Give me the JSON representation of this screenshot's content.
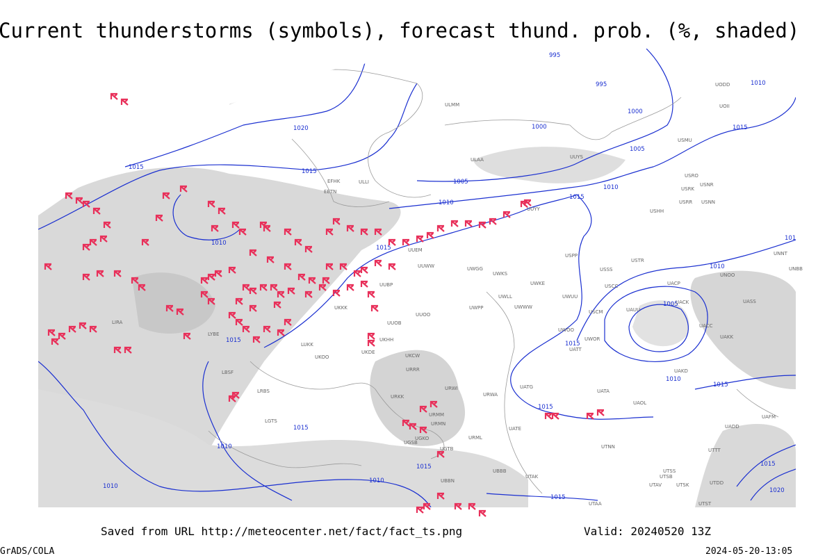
{
  "title": "Current thunderstorms (symbols), forecast thund. prob. (%, shaded)",
  "isobar_labels": [
    "995",
    "995",
    "1000",
    "1000",
    "1005",
    "1005",
    "1010",
    "1010",
    "1015",
    "1015",
    "1010",
    "1020",
    "1015",
    "1015",
    "1010",
    "1015",
    "1010",
    "1005",
    "1015",
    "1015",
    "1010",
    "1015",
    "1015",
    "1015",
    "1010",
    "1015",
    "1010",
    "1010",
    "1015",
    "1015",
    "1020",
    "101"
  ],
  "station_labels": [
    "UUEM",
    "UUWW",
    "UWGG",
    "UWKS",
    "USPP",
    "USSS",
    "USTR",
    "UWKE",
    "UWLL",
    "UWUU",
    "UWWW",
    "UWPP",
    "UUOO",
    "UUOB",
    "UUBP",
    "USCC",
    "USCM",
    "UAUU",
    "UACK",
    "UACC",
    "UAKK",
    "UASS",
    "UNNT",
    "UNBB",
    "UKKK",
    "UKHH",
    "UKDE",
    "UKOO",
    "UKCW",
    "URRR",
    "URWI",
    "URWA",
    "URKK",
    "URMM",
    "URMN",
    "URML",
    "UATG",
    "UATA",
    "UAOL",
    "UATE",
    "UAFM",
    "UADD",
    "UTNN",
    "UBBB",
    "UTAK",
    "LUKK",
    "LYBE",
    "LIRA",
    "LRBS",
    "LBSF",
    "LGTS",
    "EFHK",
    "ULLI",
    "ULAA",
    "ULMM",
    "EETN",
    "UUYY",
    "USHH",
    "USRR",
    "USNN",
    "USRK",
    "USRO",
    "USNR",
    "USMU",
    "UUYS",
    "UODD",
    "UOII",
    "UWOO",
    "UATT",
    "UWOR",
    "UAKD",
    "UACP",
    "UNOO",
    "UTTT",
    "UTSS",
    "UTSB",
    "UTAV",
    "UTSK",
    "UTDD",
    "UTST",
    "UTAA",
    "UBBN",
    "UGSB",
    "UGTB",
    "UGKO"
  ],
  "footer": {
    "source": "Saved from URL http://meteocenter.net/fact/fact_ts.png",
    "valid": "Valid: 20240520 13Z",
    "software": "GrADS/COLA",
    "timestamp": "2024-05-20-13:05"
  }
}
